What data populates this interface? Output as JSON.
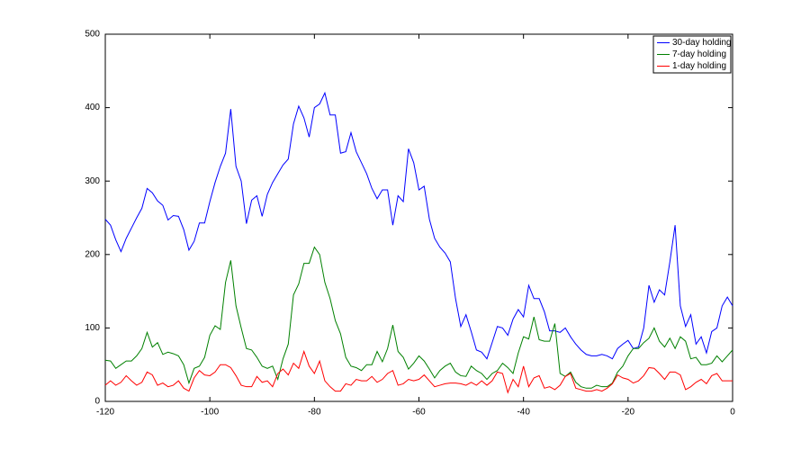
{
  "chart_data": {
    "type": "line",
    "x": [
      -120,
      -119,
      -118,
      -117,
      -116,
      -115,
      -114,
      -113,
      -112,
      -111,
      -110,
      -109,
      -108,
      -107,
      -106,
      -105,
      -104,
      -103,
      -102,
      -101,
      -100,
      -99,
      -98,
      -97,
      -96,
      -95,
      -94,
      -93,
      -92,
      -91,
      -90,
      -89,
      -88,
      -87,
      -86,
      -85,
      -84,
      -83,
      -82,
      -81,
      -80,
      -79,
      -78,
      -77,
      -76,
      -75,
      -74,
      -73,
      -72,
      -71,
      -70,
      -69,
      -68,
      -67,
      -66,
      -65,
      -64,
      -63,
      -62,
      -61,
      -60,
      -59,
      -58,
      -57,
      -56,
      -55,
      -54,
      -53,
      -52,
      -51,
      -50,
      -49,
      -48,
      -47,
      -46,
      -45,
      -44,
      -43,
      -42,
      -41,
      -40,
      -39,
      -38,
      -37,
      -36,
      -35,
      -34,
      -33,
      -32,
      -31,
      -30,
      -29,
      -28,
      -27,
      -26,
      -25,
      -24,
      -23,
      -22,
      -21,
      -20,
      -19,
      -18,
      -17,
      -16,
      -15,
      -14,
      -13,
      -12,
      -11,
      -10,
      -9,
      -8,
      -7,
      -6,
      -5,
      -4,
      -3,
      -2,
      -1,
      0
    ],
    "series": [
      {
        "name": "30-day holding",
        "color": "#0000ff",
        "values": [
          248,
          240,
          220,
          204,
          222,
          236,
          250,
          263,
          290,
          284,
          273,
          267,
          247,
          253,
          252,
          234,
          206,
          218,
          243,
          243,
          272,
          298,
          320,
          338,
          398,
          320,
          300,
          242,
          274,
          280,
          252,
          282,
          298,
          310,
          322,
          330,
          378,
          402,
          386,
          360,
          400,
          405,
          420,
          390,
          390,
          338,
          340,
          366,
          340,
          325,
          310,
          290,
          276,
          288,
          288,
          240,
          280,
          272,
          344,
          325,
          288,
          293,
          248,
          222,
          210,
          202,
          190,
          140,
          102,
          118,
          95,
          70,
          67,
          58,
          80,
          102,
          100,
          90,
          112,
          125,
          115,
          158,
          140,
          140,
          122,
          96,
          96,
          94,
          100,
          88,
          78,
          70,
          64,
          62,
          62,
          64,
          62,
          58,
          72,
          78,
          83,
          72,
          74,
          100,
          158,
          135,
          152,
          145,
          190,
          240,
          130,
          102,
          118,
          78,
          88,
          66,
          95,
          100,
          130,
          142,
          130
        ]
      },
      {
        "name": "7-day holding",
        "color": "#008000",
        "values": [
          56,
          55,
          45,
          50,
          55,
          55,
          62,
          72,
          94,
          74,
          80,
          64,
          67,
          65,
          62,
          50,
          25,
          45,
          48,
          60,
          90,
          103,
          98,
          162,
          192,
          130,
          100,
          72,
          70,
          60,
          48,
          45,
          48,
          30,
          58,
          78,
          145,
          160,
          188,
          188,
          210,
          200,
          162,
          140,
          110,
          92,
          60,
          48,
          46,
          42,
          50,
          50,
          68,
          54,
          72,
          104,
          68,
          60,
          44,
          52,
          62,
          55,
          44,
          32,
          42,
          48,
          52,
          40,
          35,
          34,
          48,
          42,
          38,
          30,
          38,
          42,
          52,
          46,
          38,
          66,
          88,
          85,
          115,
          84,
          82,
          82,
          106,
          38,
          34,
          40,
          26,
          20,
          18,
          18,
          22,
          20,
          20,
          25,
          40,
          48,
          62,
          72,
          72,
          80,
          86,
          100,
          82,
          74,
          86,
          72,
          88,
          82,
          58,
          60,
          50,
          50,
          52,
          62,
          54,
          62,
          70
        ]
      },
      {
        "name": "1-day holding",
        "color": "#ff0000",
        "values": [
          22,
          28,
          22,
          26,
          35,
          28,
          22,
          26,
          40,
          36,
          22,
          25,
          20,
          22,
          28,
          18,
          14,
          32,
          42,
          36,
          35,
          40,
          50,
          50,
          46,
          35,
          22,
          20,
          20,
          34,
          26,
          28,
          20,
          38,
          44,
          36,
          52,
          45,
          68,
          48,
          38,
          55,
          28,
          20,
          14,
          14,
          24,
          22,
          30,
          28,
          28,
          34,
          26,
          30,
          38,
          42,
          22,
          24,
          30,
          28,
          30,
          36,
          28,
          20,
          22,
          24,
          25,
          25,
          24,
          22,
          26,
          22,
          28,
          22,
          28,
          40,
          38,
          12,
          30,
          20,
          48,
          20,
          32,
          35,
          18,
          20,
          16,
          22,
          34,
          38,
          18,
          16,
          14,
          14,
          16,
          14,
          18,
          24,
          36,
          32,
          30,
          25,
          28,
          35,
          46,
          45,
          38,
          30,
          40,
          40,
          36,
          16,
          20,
          26,
          30,
          24,
          35,
          38,
          28,
          28,
          28
        ]
      }
    ],
    "xlim": [
      -120,
      0
    ],
    "xticks": [
      -120,
      -100,
      -80,
      -60,
      -40,
      -20,
      0
    ],
    "ylim": [
      0,
      500
    ],
    "yticks": [
      0,
      100,
      200,
      300,
      400,
      500
    ],
    "grid": false,
    "legend": "top-right"
  }
}
